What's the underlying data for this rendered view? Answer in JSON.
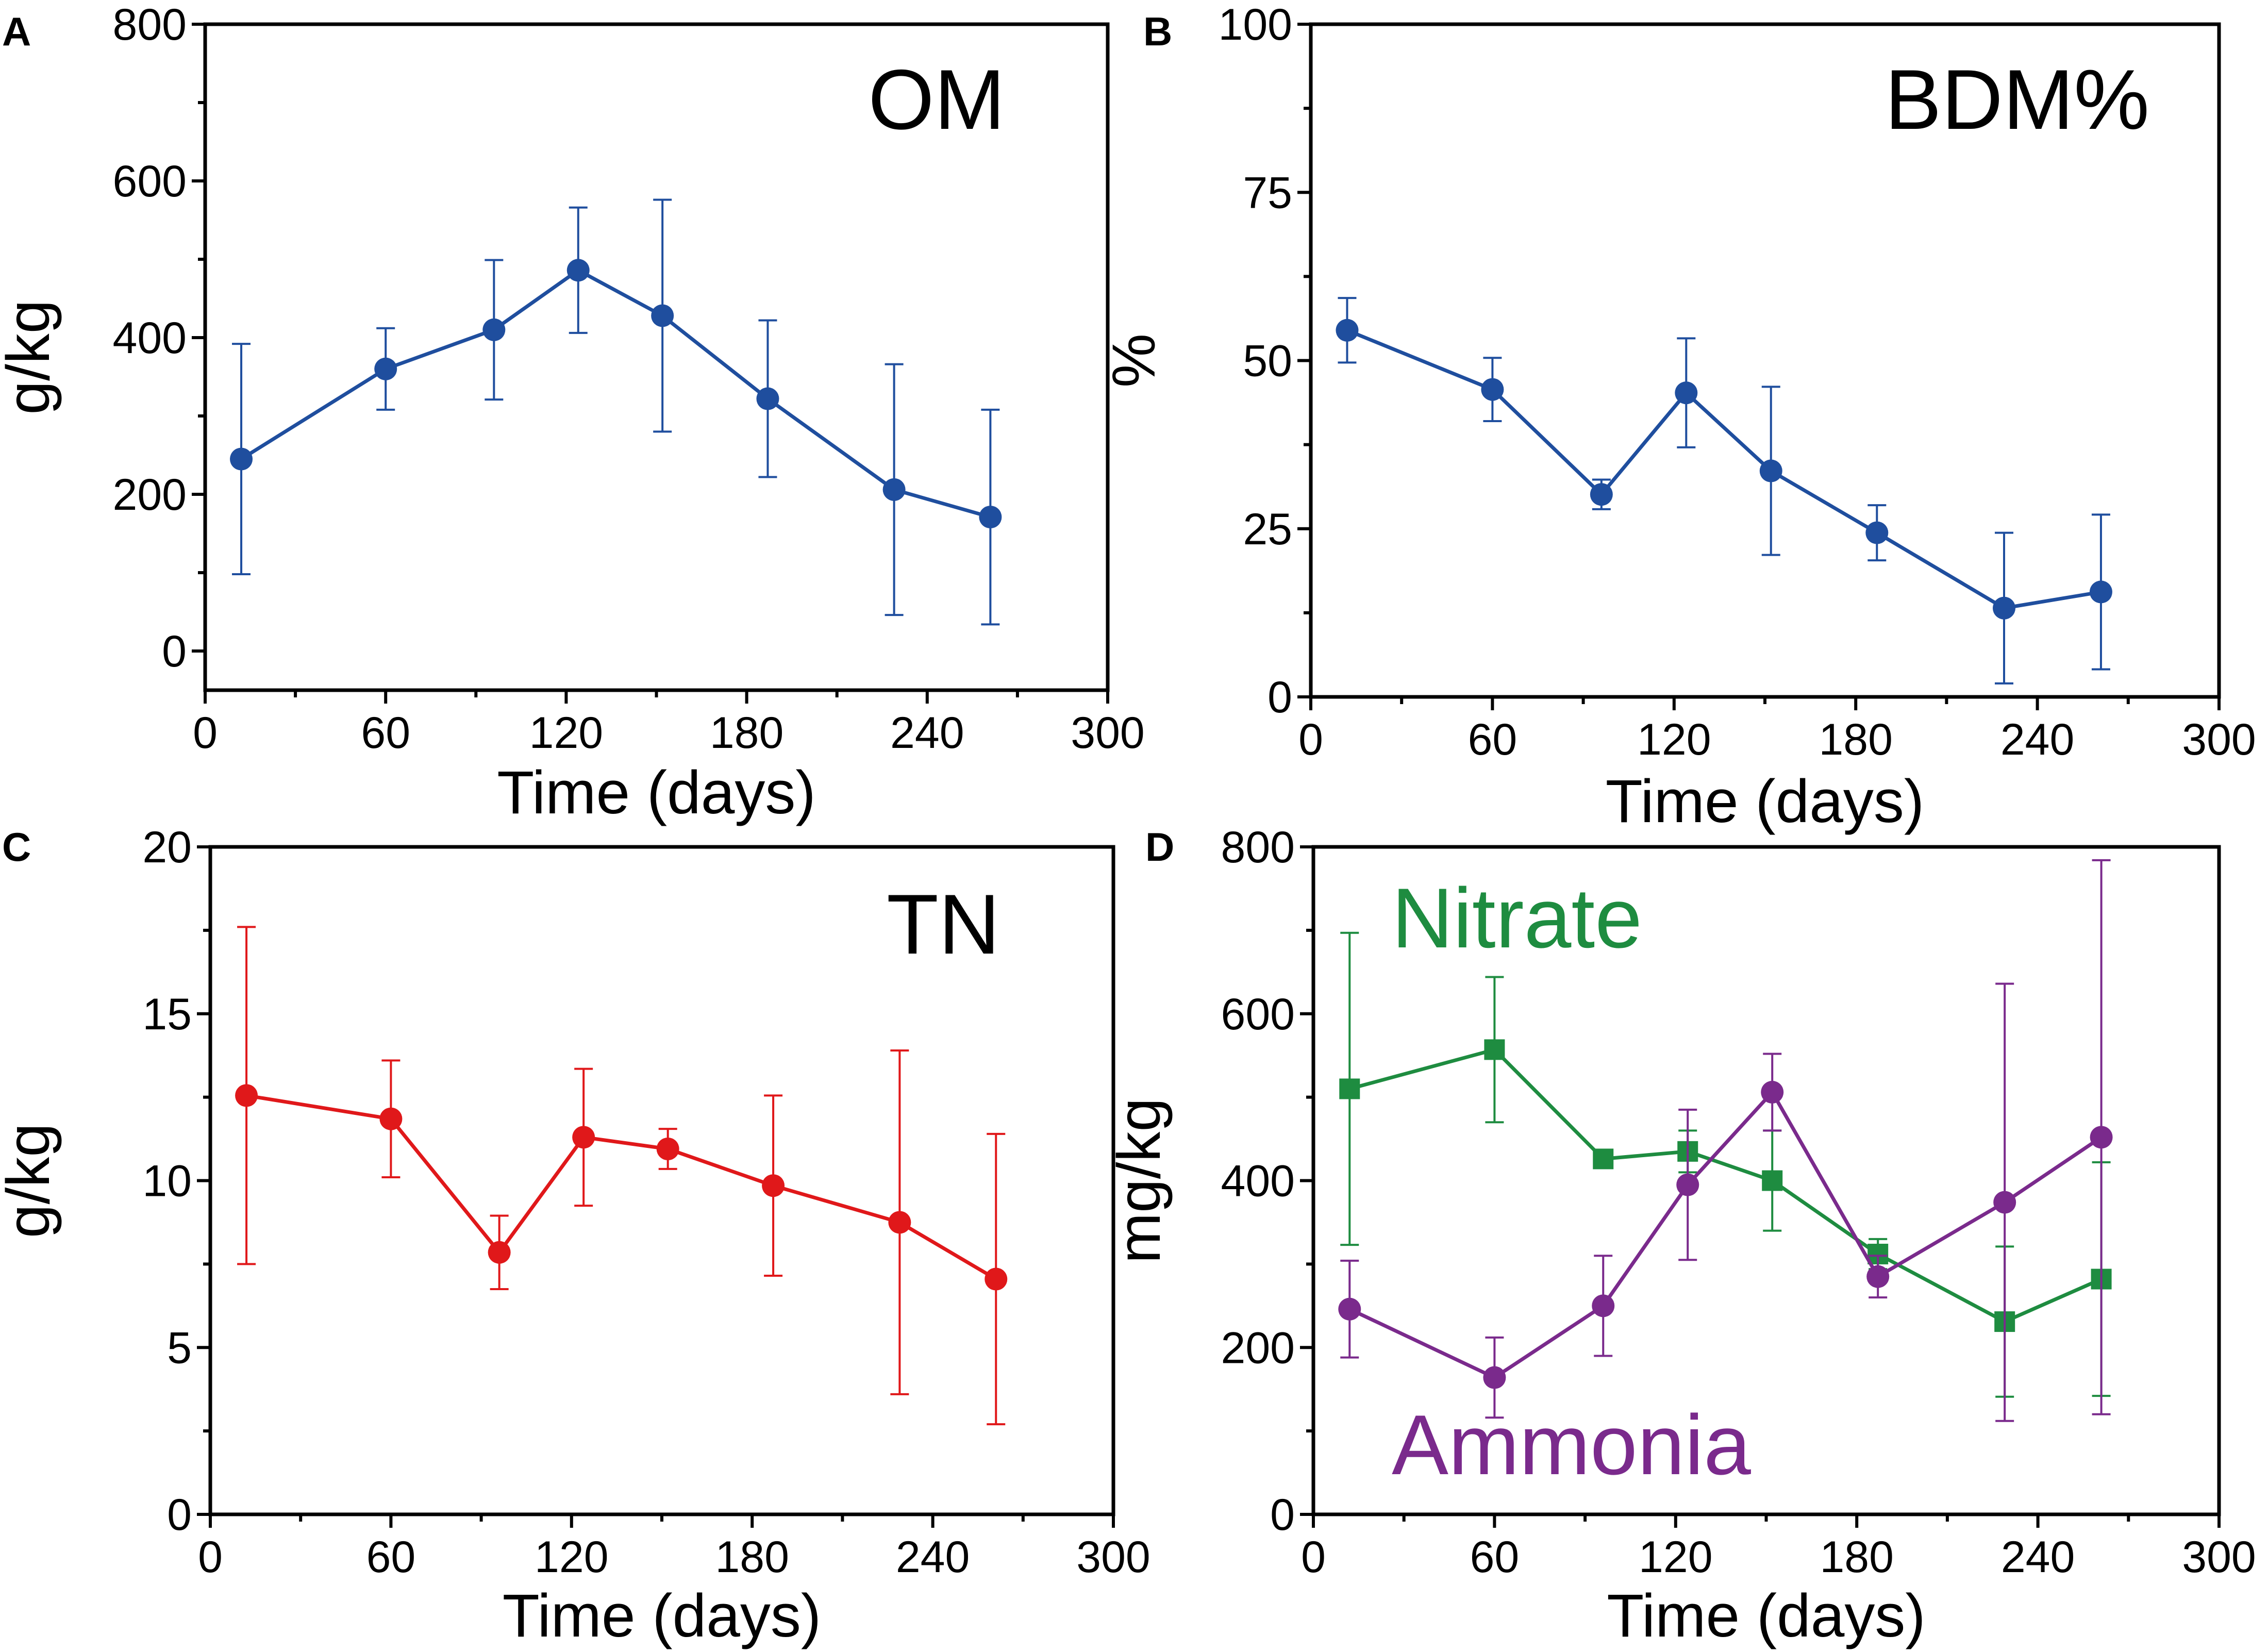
{
  "chart_data": [
    {
      "panel": "A",
      "type": "line",
      "title": "OM",
      "xlabel": "Time (days)",
      "ylabel": "g/kg",
      "xlim": [
        0,
        300
      ],
      "ylim": [
        -50,
        800
      ],
      "xticks": [
        0,
        60,
        120,
        180,
        240,
        300
      ],
      "yticks": [
        0,
        200,
        400,
        600,
        800
      ],
      "x_minor_step": 30,
      "y_minor_step": 100,
      "series": [
        {
          "name": "OM",
          "color": "#1f4e9e",
          "marker": "circle",
          "x": [
            12,
            60,
            96,
            124,
            152,
            187,
            229,
            261
          ],
          "y": [
            245,
            360,
            410,
            486,
            428,
            322,
            206,
            171
          ],
          "err": [
            147,
            52,
            89,
            80,
            148,
            100,
            160,
            137
          ]
        }
      ]
    },
    {
      "panel": "B",
      "type": "line",
      "title": "BDM%",
      "xlabel": "Time (days)",
      "ylabel": "%",
      "xlim": [
        0,
        300
      ],
      "ylim": [
        0,
        100
      ],
      "xticks": [
        0,
        60,
        120,
        180,
        240,
        300
      ],
      "yticks": [
        0,
        25,
        50,
        75,
        100
      ],
      "x_minor_step": 30,
      "y_minor_step": 12.5,
      "series": [
        {
          "name": "BDM%",
          "color": "#1f4e9e",
          "marker": "circle",
          "x": [
            12,
            60,
            96,
            124,
            152,
            187,
            229,
            261
          ],
          "y": [
            54.5,
            45.7,
            30.1,
            45.2,
            33.6,
            24.4,
            13.2,
            15.6
          ],
          "err": [
            4.8,
            4.7,
            2.2,
            8.1,
            12.5,
            4.1,
            11.2,
            11.5
          ]
        }
      ]
    },
    {
      "panel": "C",
      "type": "line",
      "title": "TN",
      "xlabel": "Time (days)",
      "ylabel": "g/kg",
      "xlim": [
        0,
        300
      ],
      "ylim": [
        0,
        20
      ],
      "xticks": [
        0,
        60,
        120,
        180,
        240,
        300
      ],
      "yticks": [
        0,
        5,
        10,
        15,
        20
      ],
      "x_minor_step": 30,
      "y_minor_step": 2.5,
      "series": [
        {
          "name": "TN",
          "color": "#e0181a",
          "marker": "circle",
          "x": [
            12,
            60,
            96,
            124,
            152,
            187,
            229,
            261
          ],
          "y": [
            12.55,
            11.85,
            7.85,
            11.3,
            10.95,
            9.85,
            8.75,
            7.05
          ],
          "err": [
            5.05,
            1.75,
            1.1,
            2.05,
            0.6,
            2.7,
            5.15,
            4.35
          ]
        }
      ]
    },
    {
      "panel": "D",
      "type": "line",
      "title": "",
      "xlabel": "Time (days)",
      "ylabel": "mg/kg",
      "xlim": [
        0,
        300
      ],
      "ylim": [
        0,
        800
      ],
      "xticks": [
        0,
        60,
        120,
        180,
        240,
        300
      ],
      "yticks": [
        0,
        200,
        400,
        600,
        800
      ],
      "x_minor_step": 30,
      "y_minor_step": 100,
      "labels": [
        {
          "text": "Nitrate",
          "color": "#1e8c40"
        },
        {
          "text": "Ammonia",
          "color": "#7a2a8c"
        }
      ],
      "series": [
        {
          "name": "Nitrate",
          "color": "#1e8c40",
          "marker": "square",
          "x": [
            12,
            60,
            96,
            124,
            152,
            187,
            229,
            261
          ],
          "y": [
            510,
            557,
            426,
            435,
            400,
            312,
            231,
            282
          ],
          "err": [
            187,
            87,
            5,
            25,
            60,
            18,
            90,
            140
          ]
        },
        {
          "name": "Ammonia",
          "color": "#7a2a8c",
          "marker": "circle",
          "x": [
            12,
            60,
            96,
            124,
            152,
            187,
            229,
            261
          ],
          "y": [
            246,
            164,
            250,
            395,
            506,
            285,
            374,
            452
          ],
          "err": [
            58,
            48,
            60,
            90,
            46,
            25,
            262,
            332
          ]
        }
      ]
    }
  ]
}
